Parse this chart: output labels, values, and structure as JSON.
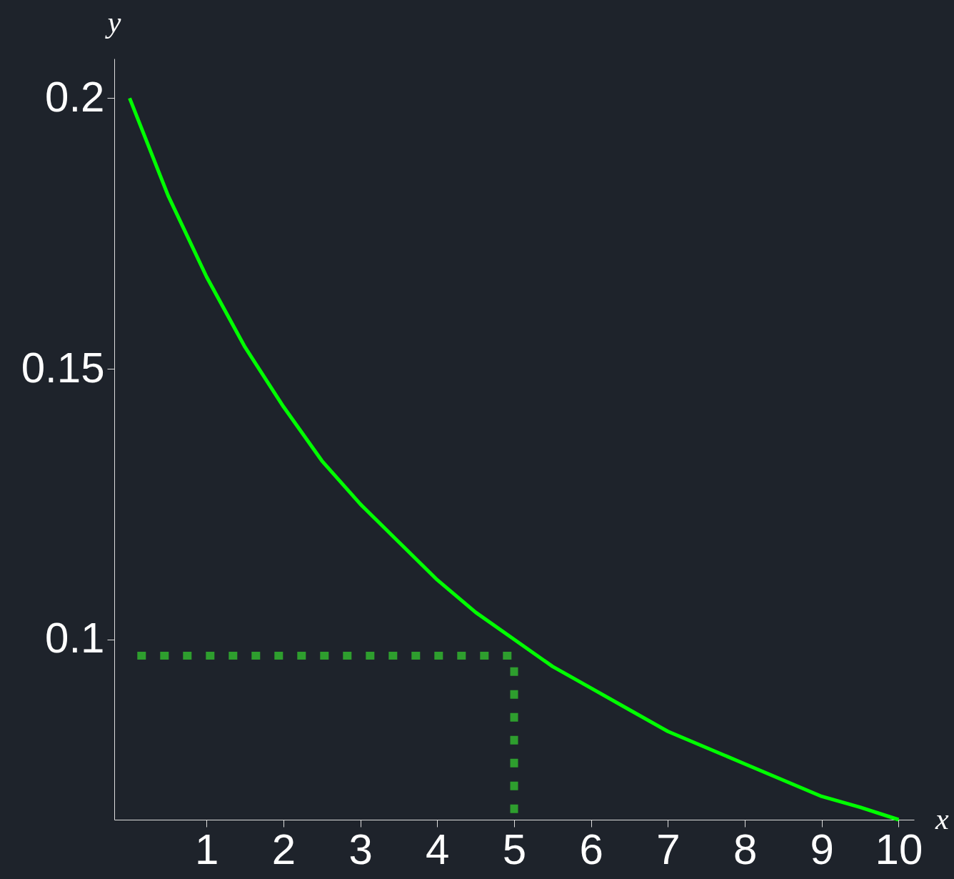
{
  "chart_data": {
    "type": "line",
    "xlabel": "x",
    "ylabel": "y",
    "xlim": [
      -0.2,
      10.2
    ],
    "ylim": [
      0.0667,
      0.2073
    ],
    "xticks": [
      1,
      2,
      3,
      4,
      5,
      6,
      7,
      8,
      9,
      10
    ],
    "yticks": [
      0.1,
      0.15,
      0.2
    ],
    "grid": false,
    "marker": "none",
    "series": [
      {
        "color": "#00ff00",
        "line_style": "solid",
        "x": [
          0,
          0.5,
          1,
          1.5,
          2,
          2.5,
          3,
          3.5,
          4,
          4.5,
          5,
          5.5,
          6,
          6.5,
          7,
          7.5,
          8,
          8.5,
          9,
          9.5,
          10
        ],
        "values": [
          0.2,
          0.182,
          0.167,
          0.154,
          0.143,
          0.133,
          0.125,
          0.118,
          0.111,
          0.105,
          0.1,
          0.095,
          0.091,
          0.087,
          0.083,
          0.08,
          0.077,
          0.074,
          0.071,
          0.069,
          0.0667
        ]
      },
      {
        "color": "#2e9e2e",
        "line_style": "dotted",
        "x": [
          0.1,
          5,
          5
        ],
        "values": [
          0.097,
          0.097,
          0.0667
        ]
      }
    ]
  }
}
